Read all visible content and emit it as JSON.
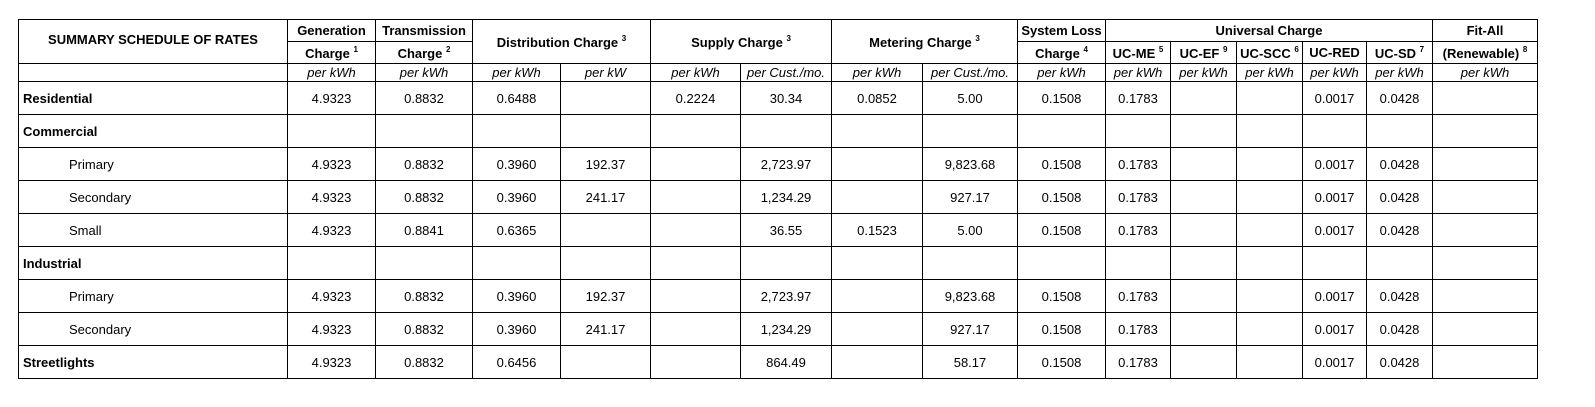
{
  "header": {
    "title": "SUMMARY SCHEDULE OF RATES",
    "generation": {
      "line1": "Generation",
      "line2": "Charge",
      "note": "1"
    },
    "transmission": {
      "line1": "Transmission",
      "line2": "Charge",
      "note": "2"
    },
    "distribution": {
      "label": "Distribution Charge",
      "note": "3"
    },
    "supply": {
      "label": "Supply Charge",
      "note": "3"
    },
    "metering": {
      "label": "Metering Charge",
      "note": "3"
    },
    "system_loss": {
      "line1": "System Loss",
      "line2": "Charge",
      "note": "4"
    },
    "universal": {
      "label": "Universal Charge"
    },
    "uc_me": {
      "label": "UC-ME",
      "note": "5"
    },
    "uc_ef": {
      "label": "UC-EF",
      "note": "9"
    },
    "uc_scc": {
      "label": "UC-SCC",
      "note": "6"
    },
    "uc_red": {
      "label": "UC-RED"
    },
    "uc_sd": {
      "label": "UC-SD",
      "note": "7"
    },
    "fit_all": {
      "line1": "Fit-All",
      "line2": "(Renewable)",
      "note": "8"
    }
  },
  "units": [
    "per kWh",
    "per kWh",
    "per kWh",
    "per kW",
    "per kWh",
    "per Cust./mo.",
    "per kWh",
    "per Cust./mo.",
    "per kWh",
    "per kWh",
    "per kWh",
    "per kWh",
    "per kWh",
    "per kWh",
    "per kWh"
  ],
  "rows": [
    {
      "label": "Residential",
      "type": "category",
      "values": [
        "4.9323",
        "0.8832",
        "0.6488",
        "",
        "0.2224",
        "30.34",
        "0.0852",
        "5.00",
        "0.1508",
        "0.1783",
        "",
        "",
        "0.0017",
        "0.0428",
        ""
      ]
    },
    {
      "label": "Commercial",
      "type": "category",
      "values": [
        "",
        "",
        "",
        "",
        "",
        "",
        "",
        "",
        "",
        "",
        "",
        "",
        "",
        "",
        ""
      ]
    },
    {
      "label": "Primary",
      "type": "sub",
      "values": [
        "4.9323",
        "0.8832",
        "0.3960",
        "192.37",
        "",
        "2,723.97",
        "",
        "9,823.68",
        "0.1508",
        "0.1783",
        "",
        "",
        "0.0017",
        "0.0428",
        ""
      ]
    },
    {
      "label": "Secondary",
      "type": "sub",
      "values": [
        "4.9323",
        "0.8832",
        "0.3960",
        "241.17",
        "",
        "1,234.29",
        "",
        "927.17",
        "0.1508",
        "0.1783",
        "",
        "",
        "0.0017",
        "0.0428",
        ""
      ]
    },
    {
      "label": "Small",
      "type": "sub",
      "values": [
        "4.9323",
        "0.8841",
        "0.6365",
        "",
        "",
        "36.55",
        "0.1523",
        "5.00",
        "0.1508",
        "0.1783",
        "",
        "",
        "0.0017",
        "0.0428",
        ""
      ]
    },
    {
      "label": "Industrial",
      "type": "category",
      "values": [
        "",
        "",
        "",
        "",
        "",
        "",
        "",
        "",
        "",
        "",
        "",
        "",
        "",
        "",
        ""
      ]
    },
    {
      "label": "Primary",
      "type": "sub",
      "values": [
        "4.9323",
        "0.8832",
        "0.3960",
        "192.37",
        "",
        "2,723.97",
        "",
        "9,823.68",
        "0.1508",
        "0.1783",
        "",
        "",
        "0.0017",
        "0.0428",
        ""
      ]
    },
    {
      "label": "Secondary",
      "type": "sub",
      "values": [
        "4.9323",
        "0.8832",
        "0.3960",
        "241.17",
        "",
        "1,234.29",
        "",
        "927.17",
        "0.1508",
        "0.1783",
        "",
        "",
        "0.0017",
        "0.0428",
        ""
      ]
    },
    {
      "label": "Streetlights",
      "type": "category",
      "values": [
        "4.9323",
        "0.8832",
        "0.6456",
        "",
        "",
        "864.49",
        "",
        "58.17",
        "0.1508",
        "0.1783",
        "",
        "",
        "0.0017",
        "0.0428",
        ""
      ]
    }
  ]
}
